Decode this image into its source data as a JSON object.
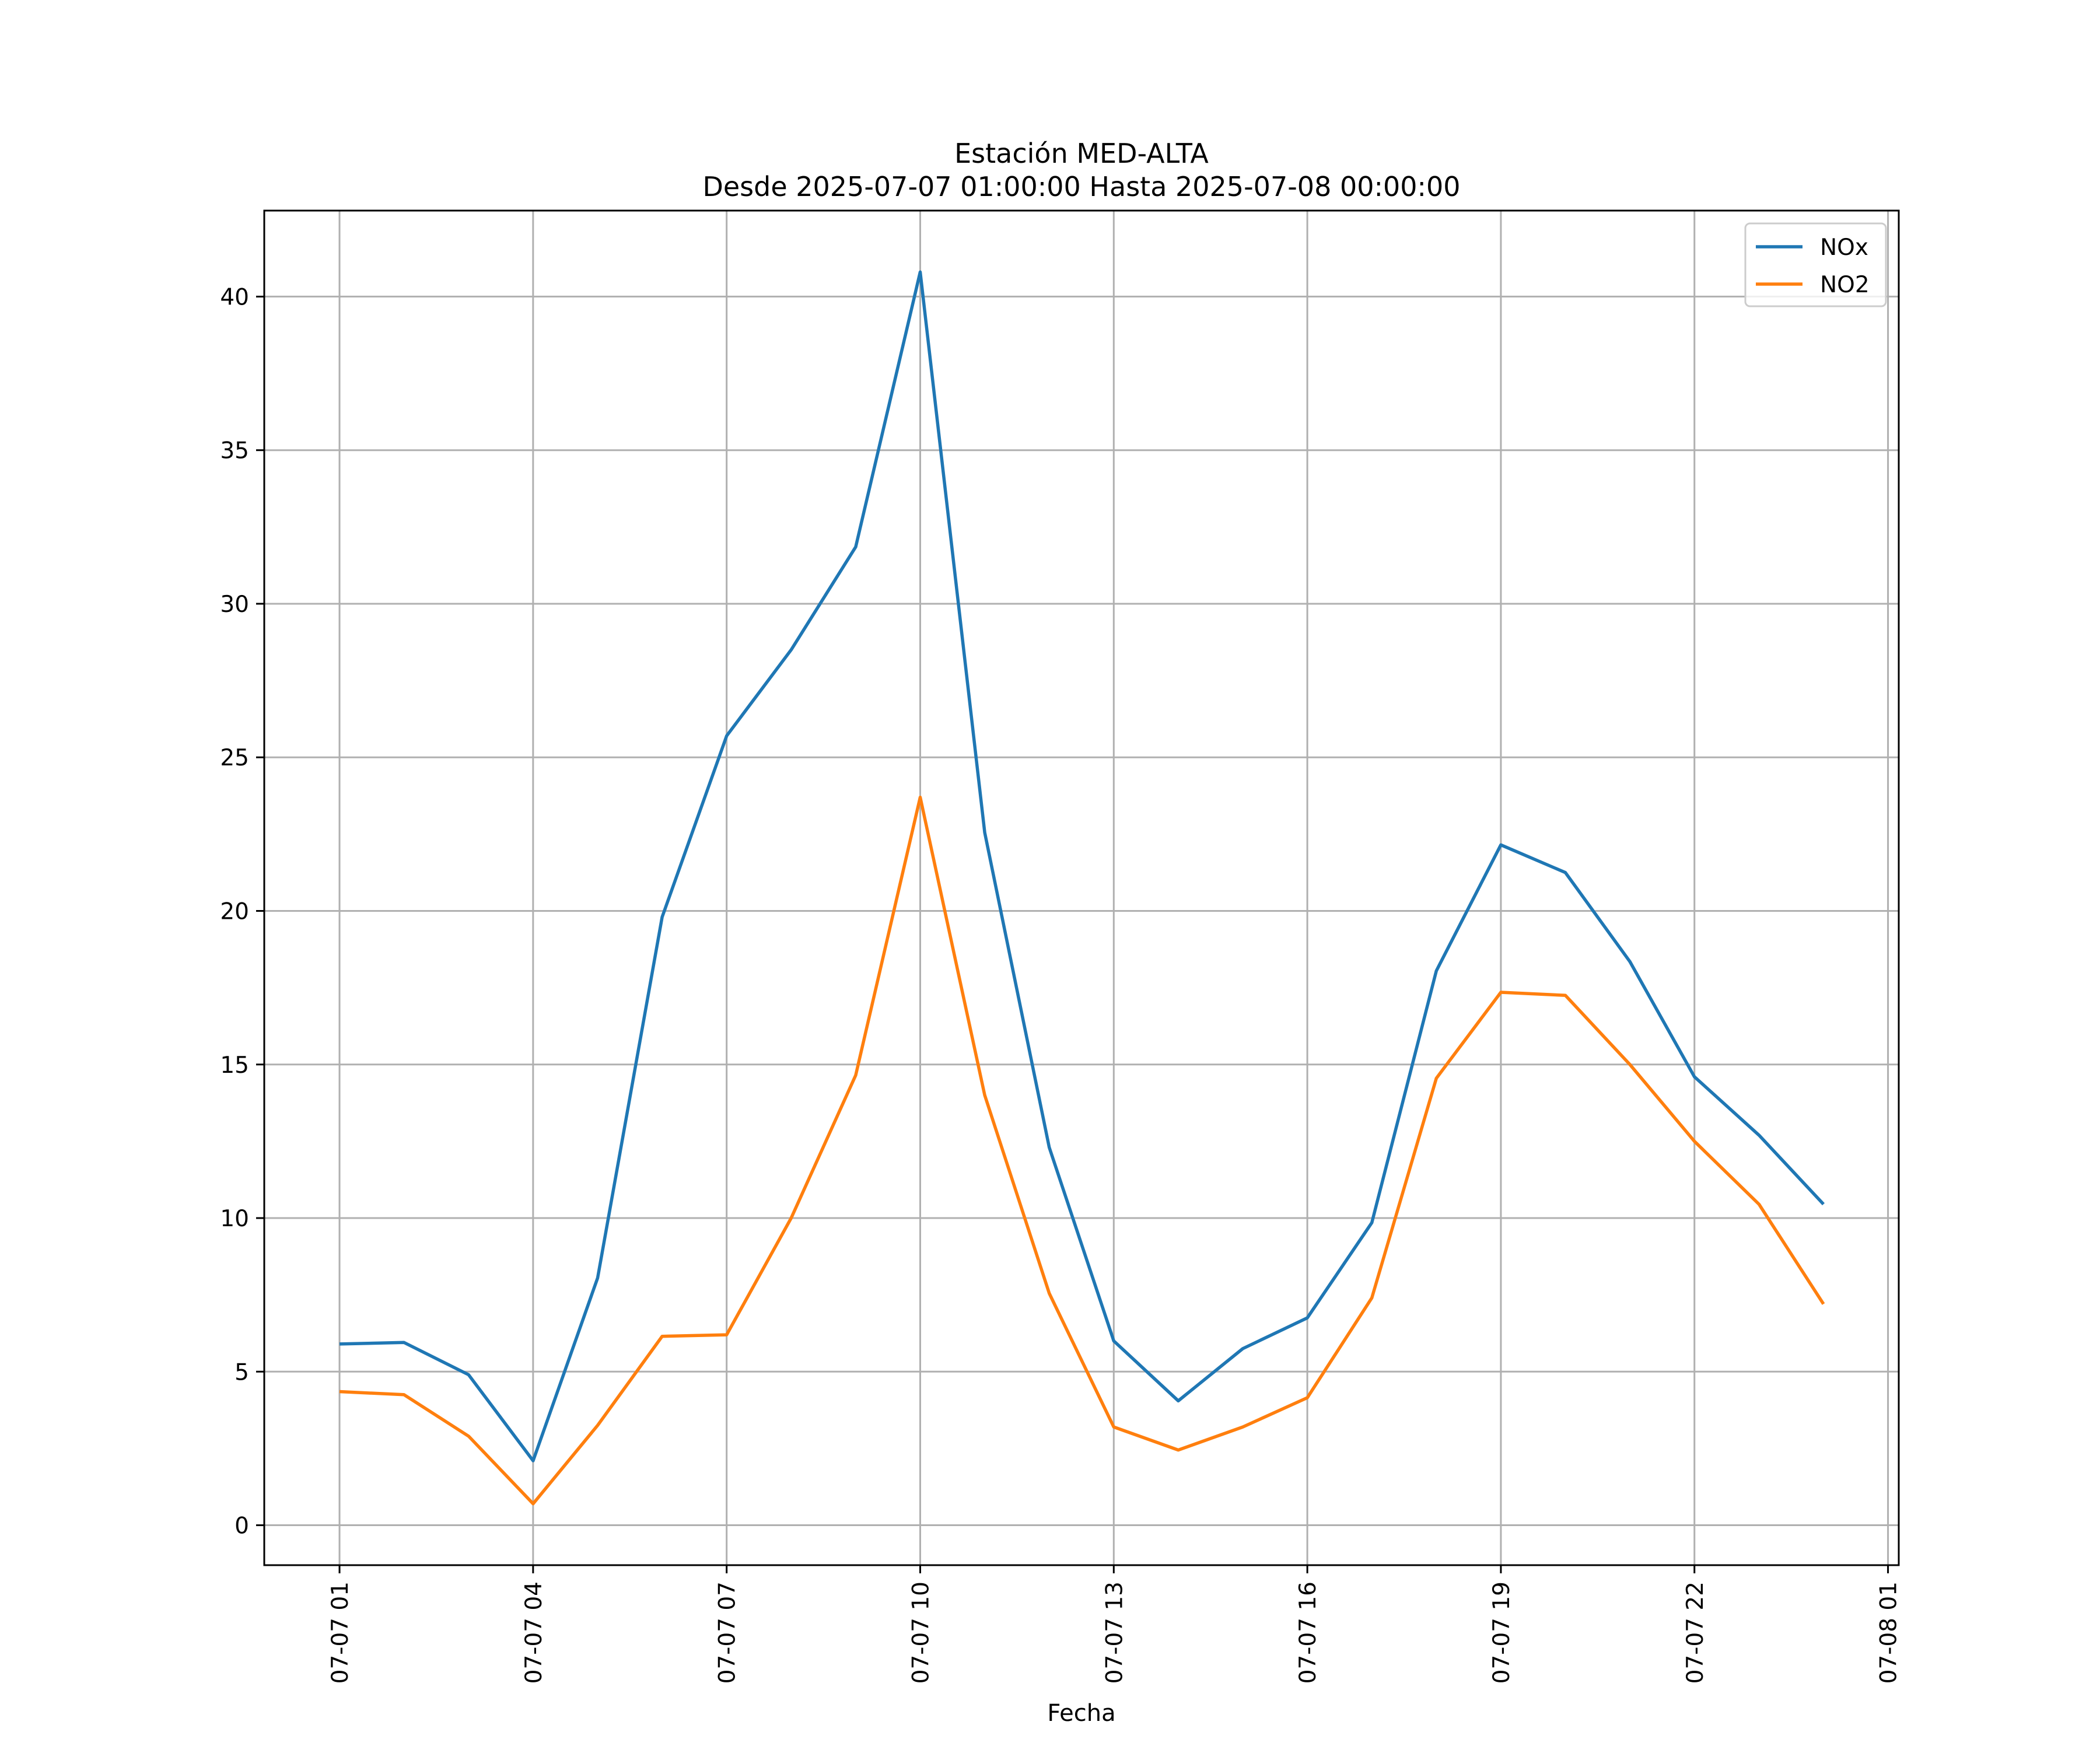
{
  "chart_data": {
    "type": "line",
    "title": "Estación MED-ALTA",
    "subtitle": "Desde 2025-07-07 01:00:00 Hasta 2025-07-08 00:00:00",
    "xlabel": "Fecha",
    "ylabel": "",
    "x": [
      "2025-07-07 01:00",
      "2025-07-07 02:00",
      "2025-07-07 03:00",
      "2025-07-07 04:00",
      "2025-07-07 05:00",
      "2025-07-07 06:00",
      "2025-07-07 07:00",
      "2025-07-07 08:00",
      "2025-07-07 09:00",
      "2025-07-07 10:00",
      "2025-07-07 11:00",
      "2025-07-07 12:00",
      "2025-07-07 13:00",
      "2025-07-07 14:00",
      "2025-07-07 15:00",
      "2025-07-07 16:00",
      "2025-07-07 17:00",
      "2025-07-07 18:00",
      "2025-07-07 19:00",
      "2025-07-07 20:00",
      "2025-07-07 21:00",
      "2025-07-07 22:00",
      "2025-07-07 23:00",
      "2025-07-08 00:00"
    ],
    "series": [
      {
        "name": "NOx",
        "color": "#1f77b4",
        "values": [
          5.9,
          5.95,
          4.9,
          2.1,
          8.05,
          19.8,
          25.7,
          28.5,
          31.85,
          40.8,
          22.55,
          12.3,
          6.0,
          4.05,
          5.75,
          6.75,
          9.85,
          18.05,
          22.15,
          21.25,
          18.35,
          14.6,
          12.7,
          10.45
        ]
      },
      {
        "name": "NO2",
        "color": "#ff7f0e",
        "values": [
          4.35,
          4.25,
          2.9,
          0.7,
          3.25,
          6.15,
          6.2,
          10.0,
          14.65,
          23.7,
          14.0,
          7.55,
          3.2,
          2.45,
          3.2,
          4.15,
          7.4,
          14.55,
          17.35,
          17.25,
          15.0,
          12.5,
          10.45,
          7.2
        ]
      }
    ],
    "ylim": [
      -1.3,
      42.8
    ],
    "yticks": [
      0,
      5,
      10,
      15,
      20,
      25,
      30,
      35,
      40
    ],
    "xlim": [
      "2025-07-06 23:50",
      "2025-07-08 01:10"
    ],
    "xticks": [
      "2025-07-07 01:00",
      "2025-07-07 04:00",
      "2025-07-07 07:00",
      "2025-07-07 10:00",
      "2025-07-07 13:00",
      "2025-07-07 16:00",
      "2025-07-07 19:00",
      "2025-07-07 22:00",
      "2025-07-08 01:00"
    ],
    "xtick_labels": [
      "07-07 01",
      "07-07 04",
      "07-07 07",
      "07-07 10",
      "07-07 13",
      "07-07 16",
      "07-07 19",
      "07-07 22",
      "07-08 01"
    ],
    "grid": true,
    "legend_position": "top-right"
  }
}
